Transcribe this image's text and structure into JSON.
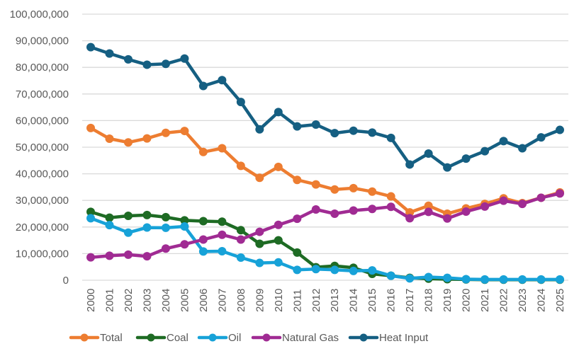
{
  "chart_data": {
    "type": "line",
    "title": "",
    "xlabel": "",
    "ylabel": "",
    "ylim": [
      0,
      100000000
    ],
    "yticks": [
      0,
      10000000,
      20000000,
      30000000,
      40000000,
      50000000,
      60000000,
      70000000,
      80000000,
      90000000,
      100000000
    ],
    "ytick_labels": [
      "0",
      "10,000,000",
      "20,000,000",
      "30,000,000",
      "40,000,000",
      "50,000,000",
      "60,000,000",
      "70,000,000",
      "80,000,000",
      "90,000,000",
      "100,000,000"
    ],
    "grid": true,
    "legend_position": "bottom",
    "categories": [
      "2000",
      "2001",
      "2002",
      "2003",
      "2004",
      "2005",
      "2006",
      "2007",
      "2008",
      "2009",
      "2010",
      "2011",
      "2012",
      "2013",
      "2014",
      "2015",
      "2016",
      "2017",
      "2018",
      "2019",
      "2020",
      "2021",
      "2022",
      "2023",
      "2024",
      "2025"
    ],
    "series": [
      {
        "name": "Total",
        "color": "#ED7D31",
        "values": [
          57200000,
          53200000,
          51800000,
          53300000,
          55400000,
          56100000,
          48200000,
          49600000,
          43000000,
          38500000,
          42600000,
          37700000,
          36000000,
          34100000,
          34600000,
          33300000,
          31500000,
          25500000,
          28000000,
          25000000,
          27000000,
          28700000,
          30800000,
          29000000,
          31000000,
          33000000
        ]
      },
      {
        "name": "Coal",
        "color": "#1E6B24",
        "values": [
          25700000,
          23500000,
          24200000,
          24500000,
          23700000,
          22500000,
          22200000,
          22000000,
          18800000,
          13700000,
          15000000,
          10400000,
          4900000,
          5400000,
          4700000,
          2400000,
          1700000,
          900000,
          600000,
          400000,
          300000,
          200000,
          200000,
          200000,
          200000,
          200000
        ]
      },
      {
        "name": "Oil",
        "color": "#17A2D8",
        "values": [
          23300000,
          20700000,
          17900000,
          19800000,
          19700000,
          20200000,
          10800000,
          10900000,
          8500000,
          6500000,
          6700000,
          3900000,
          4200000,
          3900000,
          3500000,
          3700000,
          1700000,
          700000,
          1200000,
          900000,
          400000,
          300000,
          300000,
          300000,
          300000,
          300000
        ]
      },
      {
        "name": "Natural Gas",
        "color": "#A02B93",
        "values": [
          8600000,
          9200000,
          9600000,
          9000000,
          11900000,
          13500000,
          15300000,
          17100000,
          15300000,
          18200000,
          20800000,
          23100000,
          26600000,
          25000000,
          26200000,
          26800000,
          27600000,
          23300000,
          25700000,
          23200000,
          25800000,
          27700000,
          29900000,
          28700000,
          31000000,
          32600000
        ]
      },
      {
        "name": "Heat Input",
        "color": "#155F82",
        "values": [
          87600000,
          85200000,
          83000000,
          81000000,
          81300000,
          83300000,
          73000000,
          75200000,
          67000000,
          56700000,
          63200000,
          57800000,
          58500000,
          55300000,
          56200000,
          55500000,
          53500000,
          43500000,
          47600000,
          42400000,
          45700000,
          48500000,
          52300000,
          49600000,
          53700000,
          56500000
        ]
      }
    ]
  }
}
